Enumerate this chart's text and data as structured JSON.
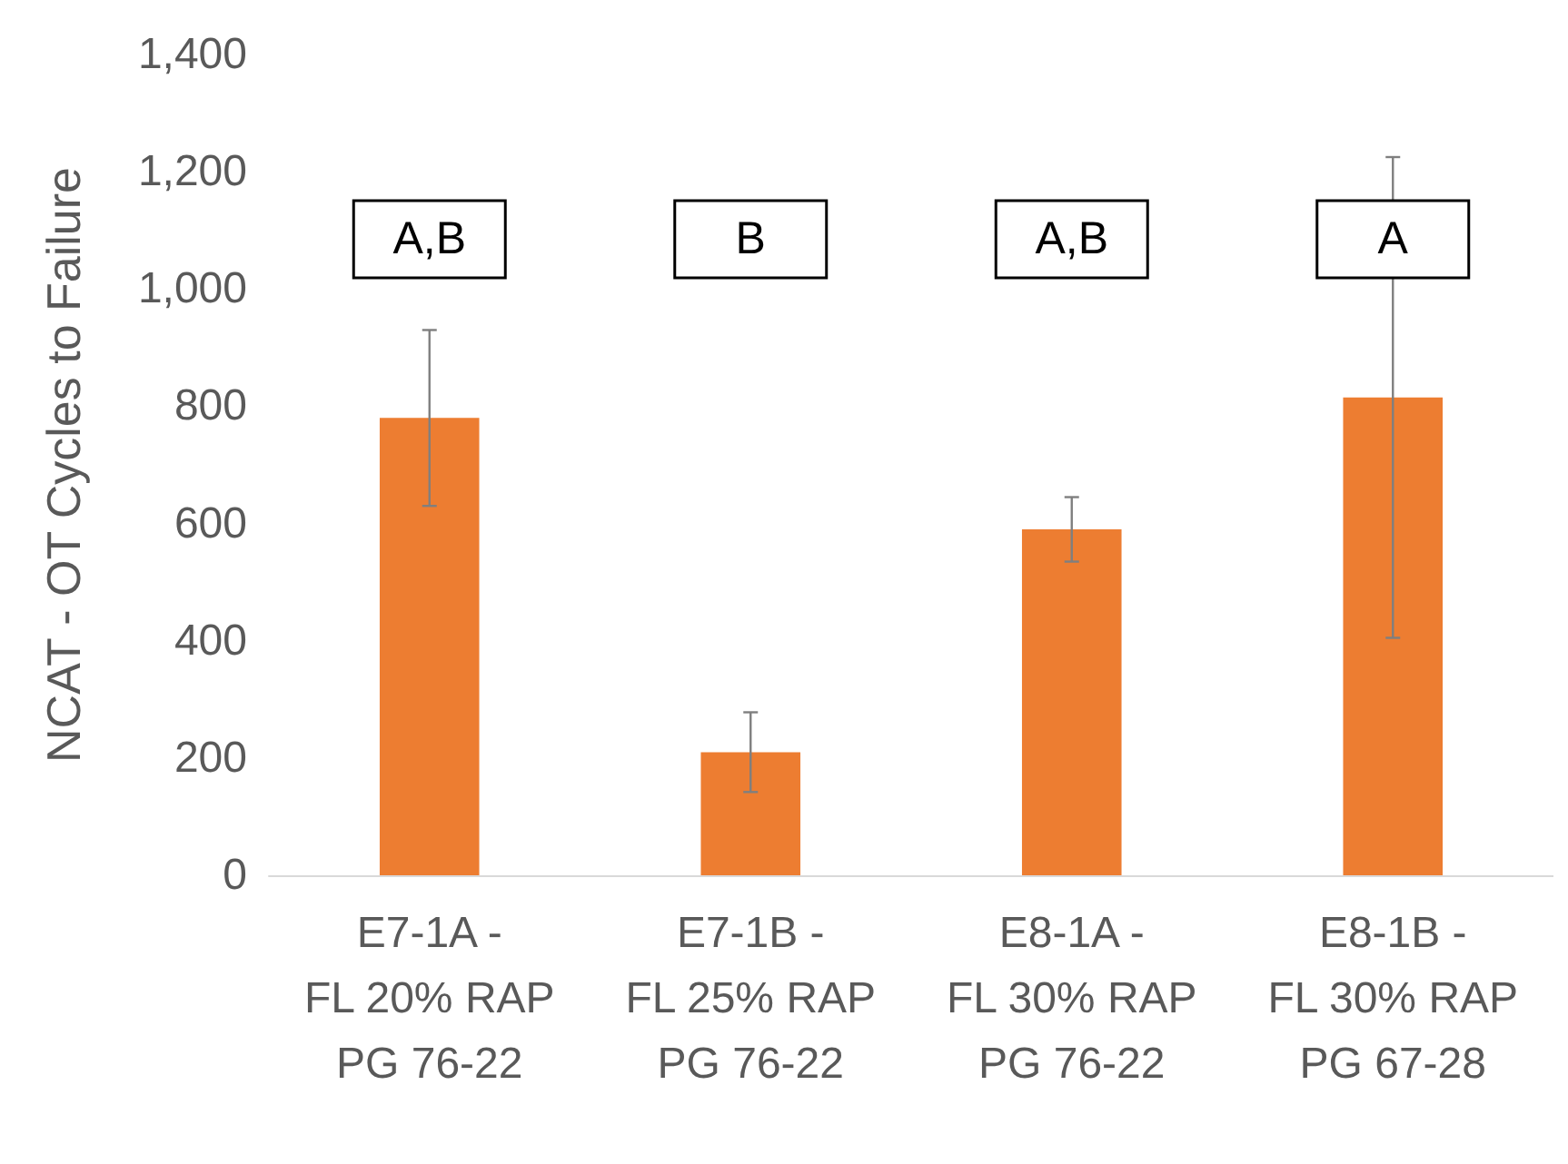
{
  "chart_data": {
    "type": "bar",
    "ylabel": "NCAT - OT Cycles to Failure",
    "categories": [
      "E7-1A -\nFL 20% RAP\nPG 76-22",
      "E7-1B -\nFL 25% RAP\nPG 76-22",
      "E8-1A -\nFL 30% RAP\nPG 76-22",
      "E8-1B -\nFL 30% RAP\nPG 67-28"
    ],
    "values": [
      780,
      210,
      590,
      815
    ],
    "errors": [
      150,
      68,
      55,
      410
    ],
    "color": "#ed7d31",
    "ylim": [
      0,
      1400
    ],
    "yticks": [
      {
        "value": 0,
        "label": "0"
      },
      {
        "value": 200,
        "label": "200"
      },
      {
        "value": 400,
        "label": "400"
      },
      {
        "value": 600,
        "label": "600"
      },
      {
        "value": 800,
        "label": "800"
      },
      {
        "value": 1000,
        "label": "1,000"
      },
      {
        "value": 1200,
        "label": "1,200"
      },
      {
        "value": 1400,
        "label": "1,400"
      }
    ],
    "annotations": [
      "A,B",
      "B",
      "A,B",
      "A"
    ],
    "grid": false
  }
}
